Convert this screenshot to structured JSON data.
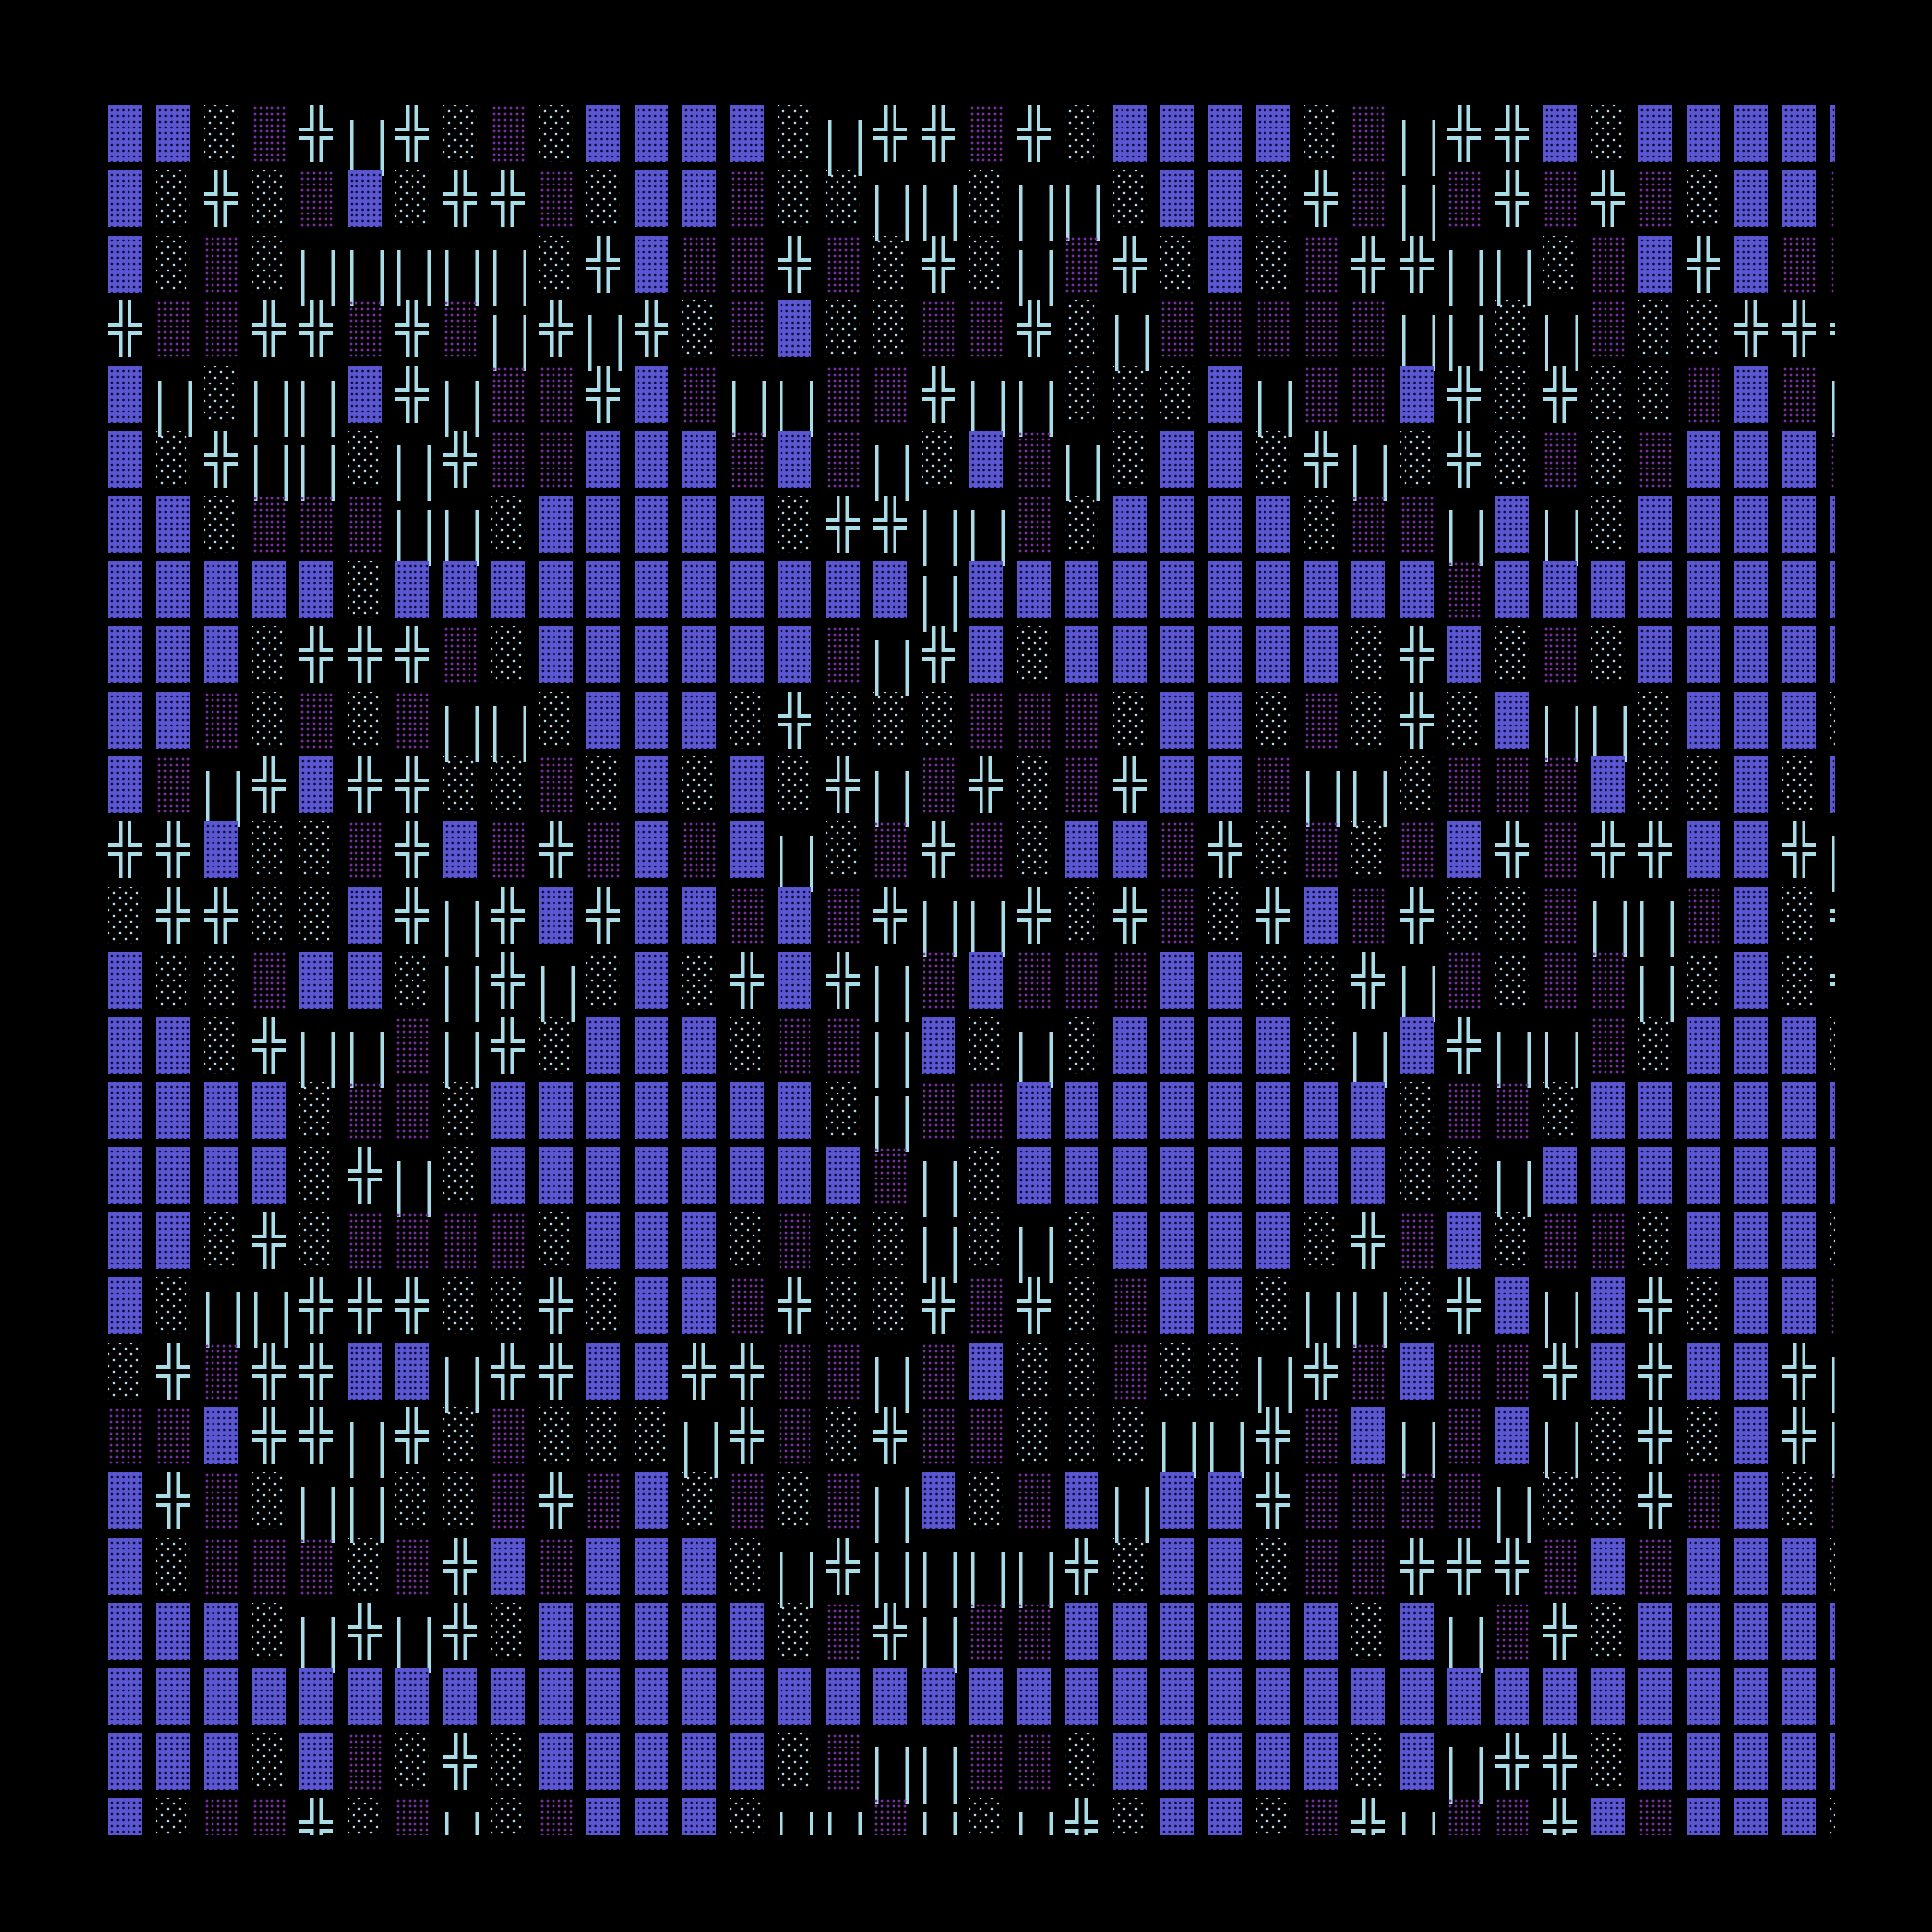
{
  "colors": {
    "background": "#000000",
    "dark_shade": "#5b57d3",
    "light_shade": "#b3d9ea",
    "medium_shade": "#7b2fa5",
    "box_lines": "#a8dce6"
  },
  "glyphs": {
    "dark_shade": "▓",
    "light_shade": "░",
    "medium_shade": "▒",
    "double_cross": "╬",
    "double_vertical": "║"
  },
  "rows": [
    "▓▓░▒╬║╬░▒░▓▓▓▓░║╬╬▒╬░▓▓▓▓░▒║╬╬▓░▓▓▓▓▓",
    "▓░╬░▒▓░╬╬▒░▓▓▒░░║║░║║░▓▓░╬▒║▒╬▒╬▒░▓▓▒",
    "▓░▒░║║║║║░╬▓▒▒╬▒░╬░║▒╬░▓░▒╬╬║║░▒▓╬▓▒▒",
    "╬▒▒╬╬▒╬▒║╬║╬░▒▓░░▒▒╬░║▒▒▒▒▒║║░║▒░░╬╬╬",
    "▓║░║║▓╬║▒▒╬▓▒║║▒▒╬║║░░░▓║▒▒▓╬░╬░░▒▓▒║",
    "▓░╬║║░║╬▒▒▓▓▓▒▓▒║░▓▒║░▓▓░╬║░╬░▒░▒▓▓▓▒",
    "▓▓░▒▒▒║║░▓▓▓▓▓░╬╬║║▒░▓▓▓▓░▒▒║▓║░▓▓▓▓▓",
    "▓▓▓▓▓░▓▓▓▓▓▓▓▓▓▓▓║▓▓▓▓▓▓▓▓▓▓▒▓▓▓▓▓▓▓▓",
    "▓▓▓░╬╬╬▒░▓▓▓▓▓▓▒║╬▓░▓▓▓▓▓▓░╬▓░▒░▓▓▓▓▓",
    "▓▓▒░▒░▒║║░▓▓▓░╬░░░▒▒▒░▓▓░▒░╬░▓║║░▓▓▓░",
    "▓▒║╬▓╬╬░░▒░▓░▓░╬║▒╬░▒╬▓▓▒║║░▒▒▒▓░░▓░▓",
    "╬╬▓░░▒╬▓▒╬▒▓▒▓║░▒╬▒░▓▓▒╬░▒░▒▓╬▒╬╬▓▓╬║",
    "░╬╬░░▓╬║╬▓╬▓▓▒▓▒╬║║╬░╬▒░╬▓▒╬░░▒║║▒▓░╬",
    "▓░░▒▓▓░║╬║░▓░╬▓╬║▒▓▒▒▒▓▓░░╬║▒░▒▒║░▓░╬",
    "▓▓░╬║║▒║╬░▓▓▓░▒▒║▓░║░▓▓▓▓░║▓╬║║▒░▓▓▓░",
    "▓▓▓▓░▒▒░▓▓▓▓▓▓▓░║▒▒▓▓▓▓▓▓▓▓░▒▒░▓▓▓▓▓▓",
    "▓▓▓▓░╬║░▓▓▓▓▓▓▓▓▒║░▓▓▓▓▓▓▓▓░░║▓▓▓▓▓▓▓",
    "▓▓░╬░▒▒▒▒░▓▓▓░▒░░║░║░▓▓▓▓░╬▒▓░▒▒░▓▓▓░",
    "▓░║║╬╬╬░░╬░▓▓▒╬░░╬▒╬░▒▓▓░║║░╬▓║▓╬░▓▓▒",
    "░╬▒╬╬▓▓║╬╬▓▓╬╬▒▒║▒▓░░▒░░║╬▒▓▒▒╬▓╬▓▓╬║",
    "▒▒▓╬╬║╬░▒░░░║╬▒░╬▒▒░░░║║╬▒▓║▒▓║░╬░▓╬║",
    "▓╬▒░║║░░▒╬▒▓░▒░▒║▓░▒▓║▓▓╬▒▒▒▒║░░╬▒▓░▒",
    "▓░▒▒▒░▒╬▓▒▓▓▓░║╬║║║║╬░▓▓░▒▒╬╬╬▒▓▒▓▓▓░",
    "▓▓▓░║╬║╬░▓▓▓▓▓░▒╬║▒▒▓▓▓▓▓▓░▓║▒╬░▓▓▓▓▓",
    "▓▓▓▓▓▓▓▓▓▓▓▓▓▓▓▓▓▓▓▓▓▓▓▓▓▓▓▓▓▓▓▓▓▓▓▓▓",
    "▓▓▓░▓▒░╬░▓▓▓▓▓░▒║║▒▒░▓▓▓▓▓░▓║╬╬░▓▓▓▓▓",
    "▓░▒▒╬░▒║░▒▓▓▓░║║▒║░║╬░▓▓░▒╬║▒▒╬▓▒▓▓▓░"
  ]
}
